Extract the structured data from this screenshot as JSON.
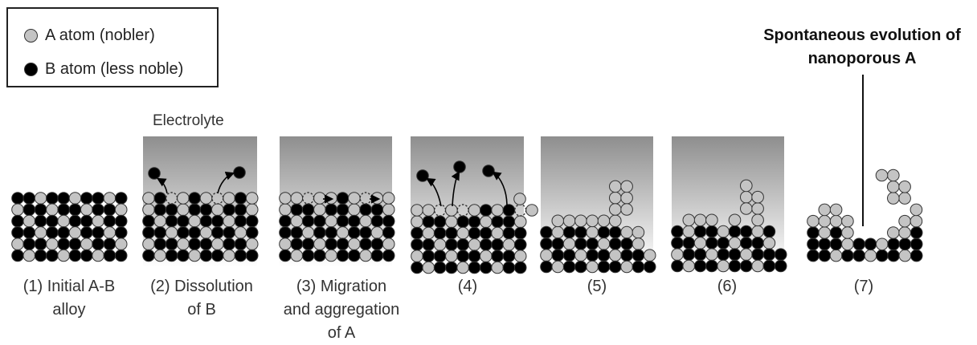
{
  "legend": {
    "a_atom_label": "A atom (nobler)",
    "b_atom_label": "B atom (less noble)"
  },
  "electrolyte_label": "Electrolyte",
  "headline": [
    "Spontaneous evolution of",
    "nanoporous A"
  ],
  "captions": [
    [
      "(1) Initial A-B",
      "alloy"
    ],
    [
      "(2) Dissolution",
      "of B"
    ],
    [
      "(3) Migration",
      "and aggregation",
      "of A"
    ],
    [
      "(4)"
    ],
    [
      "(5)"
    ],
    [
      "(6)"
    ],
    [
      "(7)"
    ]
  ],
  "colors": {
    "a_atom": "#c4c4c4",
    "b_atom": "#000000",
    "outline": "#333333",
    "electrolyte_top": "#8e8e8e",
    "electrolyte_bottom": "#ffffff"
  }
}
